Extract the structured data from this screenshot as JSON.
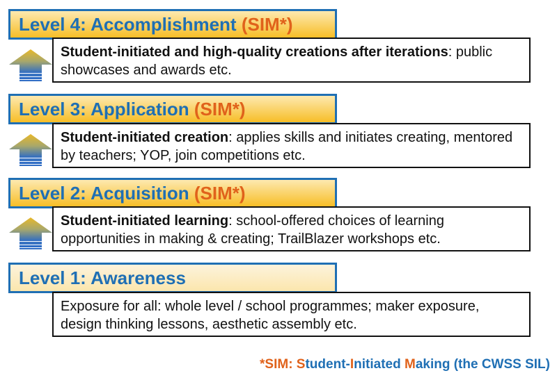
{
  "colors": {
    "level_border": "#1f6fb4",
    "level_text": "#1f6fb4",
    "sim_text": "#e0621b",
    "level_fill_light": "#fde9b0",
    "level_fill_dark": "#f7be27",
    "arrow_top": "#e8b82a",
    "arrow_bottom": "#2e6cc4"
  },
  "levels": [
    {
      "title": "Level 4: Accomplishment",
      "sim": "(SIM*)",
      "desc_bold": "Student-initiated and high-quality creations after iterations",
      "desc_rest": ": public showcases and awards etc."
    },
    {
      "title": "Level 3: Application",
      "sim": "(SIM*)",
      "desc_bold": "Student-initiated creation",
      "desc_rest": ": applies skills and initiates creating, mentored by teachers; YOP, join competitions etc."
    },
    {
      "title": "Level 2: Acquisition",
      "sim": "(SIM*)",
      "desc_bold": "Student-initiated learning",
      "desc_rest": ": school-offered choices of learning opportunities in making & creating; TrailBlazer workshops etc."
    },
    {
      "title": "Level 1: Awareness",
      "desc_text": "Exposure for all: whole level / school programmes; maker exposure, design thinking lessons, aesthetic assembly etc."
    }
  ],
  "footnote": {
    "parts": [
      "*SIM: ",
      "S",
      "tudent-",
      "I",
      "nitiated ",
      "M",
      "aking (the CWSS SIL)"
    ]
  }
}
